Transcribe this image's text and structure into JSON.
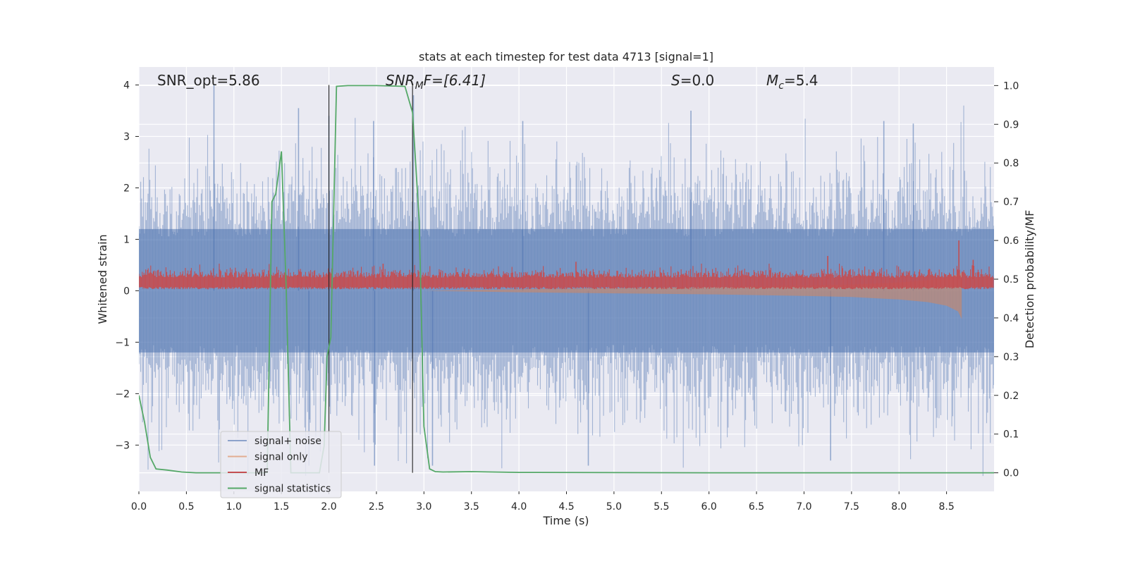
{
  "chart_data": {
    "type": "line",
    "title": "stats at each timestep for test data 4713 [signal=1]",
    "xlabel": "Time (s)",
    "ylabel": "Whitened strain",
    "y2label": "Detection probability/MF",
    "xlim": [
      0.0,
      9.0
    ],
    "ylim": [
      -3.9,
      4.35
    ],
    "y2lim": [
      -0.048,
      1.048
    ],
    "x_ticks": [
      0.0,
      0.5,
      1.0,
      1.5,
      2.0,
      2.5,
      3.0,
      3.5,
      4.0,
      4.5,
      5.0,
      5.5,
      6.0,
      6.5,
      7.0,
      7.5,
      8.0,
      8.5
    ],
    "x_tick_labels": [
      "0.0",
      "0.5",
      "1.0",
      "1.5",
      "2.0",
      "2.5",
      "3.0",
      "3.5",
      "4.0",
      "4.5",
      "5.0",
      "5.5",
      "6.0",
      "6.5",
      "7.0",
      "7.5",
      "8.0",
      "8.5"
    ],
    "y_ticks": [
      4,
      3,
      2,
      1,
      0,
      -1,
      -2,
      -3
    ],
    "y_tick_labels": [
      "4",
      "3",
      "2",
      "1",
      "0",
      "−1",
      "−2",
      "−3"
    ],
    "y2_ticks": [
      1.0,
      0.9,
      0.8,
      0.7,
      0.6,
      0.5,
      0.4,
      0.3,
      0.2,
      0.1,
      0.0
    ],
    "y2_tick_labels": [
      "1.0",
      "0.9",
      "0.8",
      "0.7",
      "0.6",
      "0.5",
      "0.4",
      "0.3",
      "0.2",
      "0.1",
      "0.0"
    ],
    "grid": true,
    "legend_position": "lower-left",
    "annotations": {
      "snr_opt": "SNR_opt=5.86",
      "snr_mf_sym": "SNR",
      "snr_mf_sub": "M",
      "snr_mf_rest": "F=[6.41]",
      "s_sym": "S",
      "s_rest": "=0.0",
      "mc_sym": "M",
      "mc_sub": "c",
      "mc_rest": "=5.4"
    },
    "vertical_lines_x": [
      2.0,
      2.88
    ],
    "series": [
      {
        "name": "signal+ noise",
        "axis": "left",
        "color": "#4c72b0",
        "description": "whitened strain noise band",
        "band": {
          "min": -3.6,
          "max": 4.0,
          "typical_low": -1.2,
          "typical_high": 1.2
        },
        "tallest_spikes": [
          {
            "x": 0.79,
            "y": 4.0
          },
          {
            "x": 1.68,
            "y": 3.55
          },
          {
            "x": 2.0,
            "y": 3.4
          },
          {
            "x": 2.47,
            "y": 3.3
          },
          {
            "x": 2.89,
            "y": 3.8
          },
          {
            "x": 4.04,
            "y": 3.3
          },
          {
            "x": 5.81,
            "y": 3.5
          },
          {
            "x": 7.84,
            "y": 3.3
          },
          {
            "x": 8.15,
            "y": 3.25
          },
          {
            "x": 4.73,
            "y": -3.4
          },
          {
            "x": 3.09,
            "y": -3.4
          },
          {
            "x": 1.79,
            "y": -3.4
          },
          {
            "x": 2.48,
            "y": -3.4
          },
          {
            "x": 7.28,
            "y": -3.3
          }
        ]
      },
      {
        "name": "signal only",
        "axis": "left",
        "color": "#dd8452",
        "x": [
          3.0,
          4.0,
          5.0,
          6.0,
          7.0,
          7.5,
          8.0,
          8.3,
          8.5,
          8.62,
          8.66
        ],
        "values_low": [
          0.0,
          -0.03,
          -0.05,
          -0.07,
          -0.1,
          -0.12,
          -0.17,
          -0.22,
          -0.29,
          -0.4,
          -0.55
        ],
        "values_high": [
          0.0,
          0.03,
          0.05,
          0.07,
          0.1,
          0.12,
          0.16,
          0.2,
          0.25,
          0.32,
          0.35
        ]
      },
      {
        "name": "MF",
        "axis": "right",
        "color": "#c44e52",
        "baseline": 0.5,
        "band": {
          "min": 0.474,
          "max": 0.53
        },
        "peaks": [
          {
            "x": 8.63,
            "y": 0.6
          },
          {
            "x": 7.25,
            "y": 0.56
          },
          {
            "x": 4.6,
            "y": 0.545
          },
          {
            "x": 2.57,
            "y": 0.54
          },
          {
            "x": 8.78,
            "y": 0.55
          }
        ]
      },
      {
        "name": "signal statistics",
        "axis": "right",
        "color": "#55a868",
        "x": [
          0.0,
          0.06,
          0.12,
          0.18,
          0.3,
          0.45,
          0.6,
          1.0,
          1.35,
          1.4,
          1.44,
          1.5,
          1.55,
          1.6,
          1.7,
          1.9,
          1.95,
          1.98,
          2.02,
          2.08,
          2.2,
          2.5,
          2.8,
          2.88,
          2.95,
          3.0,
          3.06,
          3.12,
          3.2,
          3.5,
          4.0,
          6.0,
          9.0
        ],
        "values": [
          0.2,
          0.13,
          0.04,
          0.01,
          0.007,
          0.002,
          0.0,
          0.0,
          0.0,
          0.7,
          0.72,
          0.83,
          0.48,
          0.0,
          0.0,
          0.0,
          0.07,
          0.3,
          0.35,
          0.998,
          1.0,
          1.0,
          0.998,
          0.93,
          0.65,
          0.12,
          0.01,
          0.003,
          0.002,
          0.003,
          0.001,
          0.0,
          0.0
        ]
      }
    ]
  }
}
